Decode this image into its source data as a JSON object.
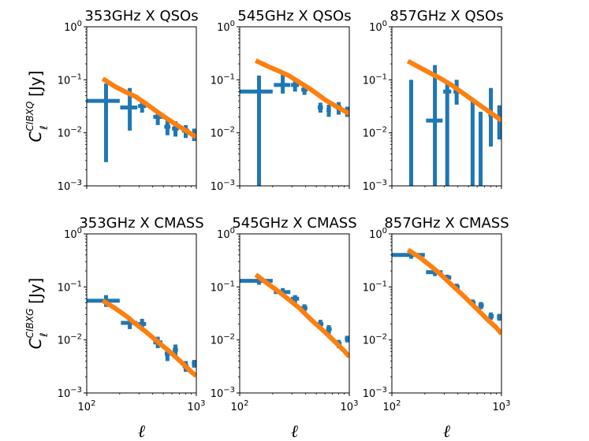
{
  "colors": {
    "data": "#1f77b4",
    "model": "#ff7f0e",
    "axes": "#000000"
  },
  "axes": {
    "x_type": "log",
    "xlim": [
      100,
      1000
    ],
    "y_type": "log",
    "ylim": [
      0.001,
      1
    ],
    "x_ticks": [
      {
        "value": 100,
        "base": "10",
        "exp": "2"
      },
      {
        "value": 1000,
        "base": "10",
        "exp": "3"
      }
    ],
    "y_ticks": [
      {
        "value": 1,
        "base": "10",
        "exp": "0"
      },
      {
        "value": 0.1,
        "base": "10",
        "exp": "−1"
      },
      {
        "value": 0.01,
        "base": "10",
        "exp": "−2"
      },
      {
        "value": 0.001,
        "base": "10",
        "exp": "−3"
      }
    ],
    "x_label": "ℓ",
    "y_label_rows": [
      {
        "main": "C",
        "sub": "ℓ",
        "sup": "CIBXQ",
        "unit": "[Jy]"
      },
      {
        "main": "C",
        "sub": "ℓ",
        "sup": "CIBXG",
        "unit": "[Jy]"
      }
    ]
  },
  "chart_data": [
    {
      "type": "errorbar+line",
      "title": "353GHz X QSOs",
      "points": [
        {
          "x": 150,
          "y": 0.04,
          "xlo": 100,
          "xhi": 200,
          "ylo": 0.0028,
          "yhi": 0.085
        },
        {
          "x": 247,
          "y": 0.03,
          "xlo": 202,
          "xhi": 290,
          "ylo": 0.011,
          "yhi": 0.07
        },
        {
          "x": 320,
          "y": 0.032,
          "xlo": 294,
          "xhi": 348,
          "ylo": 0.024,
          "yhi": 0.04
        },
        {
          "x": 445,
          "y": 0.02,
          "xlo": 405,
          "xhi": 490,
          "ylo": 0.014,
          "yhi": 0.026
        },
        {
          "x": 545,
          "y": 0.013,
          "xlo": 510,
          "xhi": 580,
          "ylo": 0.009,
          "yhi": 0.017
        },
        {
          "x": 645,
          "y": 0.012,
          "xlo": 600,
          "xhi": 690,
          "ylo": 0.0085,
          "yhi": 0.0165
        },
        {
          "x": 800,
          "y": 0.011,
          "xlo": 740,
          "xhi": 860,
          "ylo": 0.008,
          "yhi": 0.014
        },
        {
          "x": 955,
          "y": 0.0095,
          "xlo": 900,
          "xhi": 1000,
          "ylo": 0.007,
          "yhi": 0.012
        }
      ],
      "model": {
        "x": [
          140,
          180,
          230,
          280,
          350,
          450,
          600,
          750,
          900,
          1000
        ],
        "y": [
          0.105,
          0.075,
          0.058,
          0.048,
          0.035,
          0.024,
          0.016,
          0.012,
          0.0095,
          0.0083
        ]
      }
    },
    {
      "type": "errorbar+line",
      "title": "545GHz X QSOs",
      "points": [
        {
          "x": 150,
          "y": 0.06,
          "xlo": 100,
          "xhi": 200,
          "ylo": 0.001,
          "yhi": 0.12
        },
        {
          "x": 247,
          "y": 0.08,
          "xlo": 205,
          "xhi": 290,
          "ylo": 0.055,
          "yhi": 0.13
        },
        {
          "x": 320,
          "y": 0.08,
          "xlo": 294,
          "xhi": 348,
          "ylo": 0.06,
          "yhi": 0.1
        },
        {
          "x": 390,
          "y": 0.065,
          "xlo": 365,
          "xhi": 415,
          "ylo": 0.052,
          "yhi": 0.078
        },
        {
          "x": 545,
          "y": 0.03,
          "xlo": 515,
          "xhi": 575,
          "ylo": 0.024,
          "yhi": 0.037
        },
        {
          "x": 650,
          "y": 0.027,
          "xlo": 620,
          "xhi": 680,
          "ylo": 0.02,
          "yhi": 0.034
        },
        {
          "x": 800,
          "y": 0.03,
          "xlo": 755,
          "xhi": 850,
          "ylo": 0.022,
          "yhi": 0.038
        },
        {
          "x": 955,
          "y": 0.025,
          "xlo": 910,
          "xhi": 1000,
          "ylo": 0.02,
          "yhi": 0.031
        }
      ],
      "model": {
        "x": [
          140,
          180,
          230,
          280,
          350,
          450,
          600,
          750,
          900,
          1000
        ],
        "y": [
          0.23,
          0.18,
          0.145,
          0.12,
          0.09,
          0.065,
          0.042,
          0.032,
          0.026,
          0.023
        ]
      }
    },
    {
      "type": "errorbar+line",
      "title": "857GHz X QSOs",
      "points": [
        {
          "x": 150,
          "y": 0.1,
          "xlo": 150,
          "xhi": 150,
          "ylo": 0.001,
          "yhi": 0.1
        },
        {
          "x": 247,
          "y": 0.017,
          "xlo": 205,
          "xhi": 290,
          "ylo": 0.001,
          "yhi": 0.19
        },
        {
          "x": 320,
          "y": 0.06,
          "xlo": 294,
          "xhi": 348,
          "ylo": 0.001,
          "yhi": 0.095
        },
        {
          "x": 390,
          "y": 0.06,
          "xlo": 365,
          "xhi": 415,
          "ylo": 0.034,
          "yhi": 0.1
        },
        {
          "x": 545,
          "y": 0.011,
          "xlo": 525,
          "xhi": 565,
          "ylo": 0.001,
          "yhi": 0.045
        },
        {
          "x": 645,
          "y": 0.011,
          "xlo": 620,
          "xhi": 670,
          "ylo": 0.001,
          "yhi": 0.025
        },
        {
          "x": 800,
          "y": 0.022,
          "xlo": 760,
          "xhi": 840,
          "ylo": 0.0055,
          "yhi": 0.07
        },
        {
          "x": 955,
          "y": 0.02,
          "xlo": 920,
          "xhi": 1000,
          "ylo": 0.0075,
          "yhi": 0.033
        }
      ],
      "model": {
        "x": [
          140,
          180,
          230,
          280,
          350,
          450,
          600,
          750,
          900,
          1000
        ],
        "y": [
          0.225,
          0.17,
          0.13,
          0.105,
          0.08,
          0.055,
          0.036,
          0.026,
          0.02,
          0.017
        ]
      }
    },
    {
      "type": "errorbar+line",
      "title": "353GHz X CMASS",
      "points": [
        {
          "x": 150,
          "y": 0.055,
          "xlo": 100,
          "xhi": 200,
          "ylo": 0.042,
          "yhi": 0.07
        },
        {
          "x": 247,
          "y": 0.021,
          "xlo": 205,
          "xhi": 290,
          "ylo": 0.016,
          "yhi": 0.027
        },
        {
          "x": 320,
          "y": 0.02,
          "xlo": 294,
          "xhi": 348,
          "ylo": 0.0155,
          "yhi": 0.025
        },
        {
          "x": 445,
          "y": 0.009,
          "xlo": 405,
          "xhi": 490,
          "ylo": 0.007,
          "yhi": 0.0115
        },
        {
          "x": 545,
          "y": 0.0055,
          "xlo": 515,
          "xhi": 580,
          "ylo": 0.004,
          "yhi": 0.007
        },
        {
          "x": 645,
          "y": 0.0065,
          "xlo": 610,
          "xhi": 680,
          "ylo": 0.005,
          "yhi": 0.0082
        },
        {
          "x": 800,
          "y": 0.0032,
          "xlo": 750,
          "xhi": 850,
          "ylo": 0.0025,
          "yhi": 0.004
        },
        {
          "x": 955,
          "y": 0.0036,
          "xlo": 910,
          "xhi": 1000,
          "ylo": 0.003,
          "yhi": 0.0042
        }
      ],
      "model": {
        "x": [
          140,
          180,
          230,
          280,
          350,
          450,
          600,
          750,
          900,
          1000
        ],
        "y": [
          0.055,
          0.04,
          0.028,
          0.02,
          0.014,
          0.009,
          0.0055,
          0.0036,
          0.0025,
          0.0021
        ]
      }
    },
    {
      "type": "errorbar+line",
      "title": "545GHz X CMASS",
      "points": [
        {
          "x": 150,
          "y": 0.13,
          "xlo": 100,
          "xhi": 200,
          "ylo": 0.11,
          "yhi": 0.15
        },
        {
          "x": 247,
          "y": 0.08,
          "xlo": 205,
          "xhi": 290,
          "ylo": 0.066,
          "yhi": 0.095
        },
        {
          "x": 320,
          "y": 0.06,
          "xlo": 294,
          "xhi": 348,
          "ylo": 0.05,
          "yhi": 0.07
        },
        {
          "x": 390,
          "y": 0.04,
          "xlo": 365,
          "xhi": 415,
          "ylo": 0.034,
          "yhi": 0.047
        },
        {
          "x": 545,
          "y": 0.02,
          "xlo": 515,
          "xhi": 580,
          "ylo": 0.017,
          "yhi": 0.024
        },
        {
          "x": 650,
          "y": 0.016,
          "xlo": 615,
          "xhi": 690,
          "ylo": 0.013,
          "yhi": 0.019
        },
        {
          "x": 800,
          "y": 0.0085,
          "xlo": 760,
          "xhi": 850,
          "ylo": 0.007,
          "yhi": 0.01
        },
        {
          "x": 955,
          "y": 0.0105,
          "xlo": 910,
          "xhi": 1000,
          "ylo": 0.009,
          "yhi": 0.012
        }
      ],
      "model": {
        "x": [
          140,
          180,
          230,
          280,
          350,
          450,
          600,
          750,
          900,
          1000
        ],
        "y": [
          0.17,
          0.115,
          0.08,
          0.058,
          0.04,
          0.024,
          0.014,
          0.009,
          0.0062,
          0.0048
        ]
      }
    },
    {
      "type": "errorbar+line",
      "title": "857GHz X CMASS",
      "points": [
        {
          "x": 150,
          "y": 0.4,
          "xlo": 100,
          "xhi": 200,
          "ylo": 0.34,
          "yhi": 0.47
        },
        {
          "x": 247,
          "y": 0.19,
          "xlo": 205,
          "xhi": 290,
          "ylo": 0.16,
          "yhi": 0.22
        },
        {
          "x": 320,
          "y": 0.15,
          "xlo": 294,
          "xhi": 348,
          "ylo": 0.13,
          "yhi": 0.17
        },
        {
          "x": 390,
          "y": 0.1,
          "xlo": 365,
          "xhi": 415,
          "ylo": 0.088,
          "yhi": 0.115
        },
        {
          "x": 545,
          "y": 0.05,
          "xlo": 515,
          "xhi": 580,
          "ylo": 0.043,
          "yhi": 0.058
        },
        {
          "x": 650,
          "y": 0.045,
          "xlo": 615,
          "xhi": 690,
          "ylo": 0.038,
          "yhi": 0.052
        },
        {
          "x": 800,
          "y": 0.028,
          "xlo": 760,
          "xhi": 850,
          "ylo": 0.024,
          "yhi": 0.033
        },
        {
          "x": 955,
          "y": 0.027,
          "xlo": 910,
          "xhi": 1000,
          "ylo": 0.023,
          "yhi": 0.031
        }
      ],
      "model": {
        "x": [
          140,
          180,
          230,
          280,
          350,
          450,
          600,
          750,
          900,
          1000
        ],
        "y": [
          0.5,
          0.36,
          0.24,
          0.17,
          0.11,
          0.068,
          0.038,
          0.024,
          0.017,
          0.013
        ]
      }
    }
  ]
}
